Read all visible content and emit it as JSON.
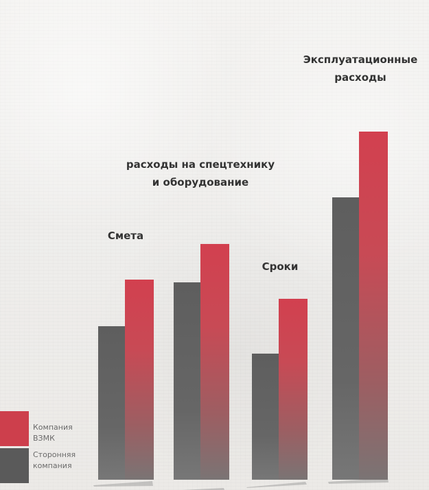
{
  "chart_data": {
    "type": "bar",
    "categories": [
      [
        "Смета"
      ],
      [
        "расходы на спецтехнику",
        "и оборудование"
      ],
      [
        "Сроки"
      ],
      [
        "Эксплуатационные",
        "расходы"
      ]
    ],
    "series": [
      {
        "name": "Компания ВЗМК",
        "values": [
          73,
          86,
          66,
          127
        ],
        "color": "#cd3f4c"
      },
      {
        "name": "Сторонняя компания",
        "values": [
          56,
          72,
          46,
          103
        ],
        "color": "#5a5a5a"
      }
    ],
    "title": "",
    "xlabel": "",
    "ylabel": "",
    "ylim": [
      0,
      130
    ],
    "grid": false,
    "legend_position": "bottom-left"
  }
}
